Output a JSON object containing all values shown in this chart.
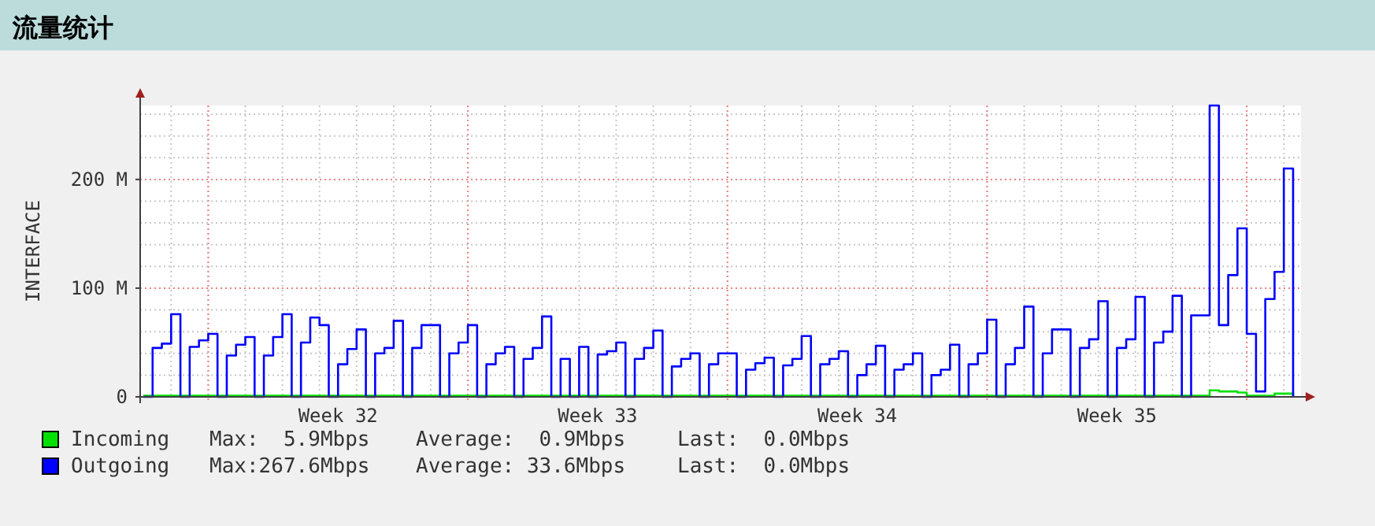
{
  "chart_data": {
    "type": "step",
    "title": "流量统计",
    "ylabel": "INTERFACE",
    "categories": [
      null,
      null,
      null,
      null,
      null,
      null,
      null,
      null,
      null,
      null,
      null,
      null,
      null,
      null,
      null,
      null,
      null,
      null,
      null,
      null,
      null,
      "Week 32",
      null,
      null,
      null,
      null,
      null,
      null,
      null,
      null,
      null,
      null,
      null,
      null,
      null,
      null,
      null,
      null,
      null,
      null,
      null,
      null,
      null,
      null,
      null,
      null,
      null,
      null,
      null,
      "Week 33",
      null,
      null,
      null,
      null,
      null,
      null,
      null,
      null,
      null,
      null,
      null,
      null,
      null,
      null,
      null,
      null,
      null,
      null,
      null,
      null,
      null,
      null,
      null,
      null,
      null,
      null,
      null,
      "Week 34",
      null,
      null,
      null,
      null,
      null,
      null,
      null,
      null,
      null,
      null,
      null,
      null,
      null,
      null,
      null,
      null,
      null,
      null,
      null,
      null,
      null,
      null,
      null,
      null,
      null,
      null,
      null,
      "Week 35",
      null,
      null,
      null,
      null,
      null,
      null,
      null,
      null,
      null,
      null,
      null,
      null,
      null,
      null,
      null,
      null,
      null,
      null,
      null
    ],
    "ylim": [
      0,
      268
    ],
    "yticks": [
      0,
      {
        "value": 20,
        "label": null
      },
      {
        "value": 40,
        "label": null
      },
      {
        "value": 60,
        "label": null
      },
      {
        "value": 80,
        "label": null
      },
      {
        "value": 100,
        "label": "100 M"
      },
      {
        "value": 120,
        "label": null
      },
      {
        "value": 140,
        "label": null
      },
      {
        "value": 160,
        "label": null
      },
      {
        "value": 180,
        "label": null
      },
      {
        "value": 200,
        "label": "200 M"
      },
      {
        "value": 220,
        "label": null
      },
      {
        "value": 240,
        "label": null
      },
      {
        "value": 260,
        "label": null
      }
    ],
    "grid": true,
    "legend": "bottom",
    "series": [
      {
        "name": "Incoming",
        "color": "#00e000",
        "values": [
          1,
          1,
          1,
          1,
          1,
          1,
          1,
          1,
          1,
          1,
          1,
          1,
          1,
          1,
          1,
          1,
          1,
          1,
          1,
          1,
          1,
          1,
          1,
          1,
          1,
          1,
          1,
          1,
          1,
          1,
          1,
          1,
          1,
          1,
          1,
          1,
          1,
          1,
          1,
          1,
          1,
          1,
          1,
          1,
          1,
          1,
          1,
          1,
          1,
          1,
          1,
          1,
          1,
          1,
          1,
          1,
          1,
          1,
          1,
          1,
          1,
          1,
          1,
          1,
          1,
          1,
          1,
          1,
          1,
          1,
          1,
          1,
          1,
          1,
          1,
          1,
          1,
          1,
          1,
          1,
          1,
          1,
          1,
          1,
          1,
          1,
          1,
          1,
          1,
          1,
          1,
          1,
          1,
          1,
          1,
          1,
          1,
          1,
          1,
          1,
          1,
          1,
          1,
          1,
          1,
          1,
          1,
          1,
          1,
          1,
          1,
          1,
          1,
          1,
          1,
          6,
          5,
          5,
          4,
          1,
          1,
          1,
          3,
          3,
          0
        ]
      },
      {
        "name": "Outgoing",
        "color": "#0000ff",
        "values": [
          0,
          45,
          49,
          76,
          0,
          46,
          52,
          58,
          0,
          38,
          48,
          55,
          0,
          38,
          55,
          76,
          0,
          50,
          73,
          66,
          0,
          30,
          44,
          62,
          0,
          40,
          45,
          70,
          0,
          45,
          66,
          66,
          0,
          40,
          50,
          66,
          0,
          30,
          40,
          46,
          0,
          35,
          45,
          74,
          0,
          35,
          0,
          46,
          0,
          39,
          42,
          50,
          0,
          35,
          45,
          61,
          0,
          28,
          35,
          40,
          0,
          30,
          40,
          40,
          0,
          25,
          31,
          36,
          0,
          29,
          35,
          56,
          0,
          30,
          35,
          42,
          0,
          20,
          30,
          47,
          0,
          25,
          30,
          40,
          0,
          20,
          25,
          48,
          0,
          30,
          40,
          71,
          0,
          30,
          45,
          83,
          0,
          40,
          62,
          62,
          0,
          45,
          53,
          88,
          0,
          45,
          53,
          92,
          0,
          50,
          60,
          93,
          0,
          75,
          75,
          268,
          66,
          112,
          155,
          58,
          5,
          90,
          115,
          210,
          0
        ]
      }
    ],
    "annotations": [
      "Max:  5.9Mbps",
      "Average:  0.9Mbps",
      "Last:  0.0Mbps",
      "Max:267.6Mbps",
      "Average: 33.6Mbps",
      "Last:  0.0Mbps"
    ]
  }
}
